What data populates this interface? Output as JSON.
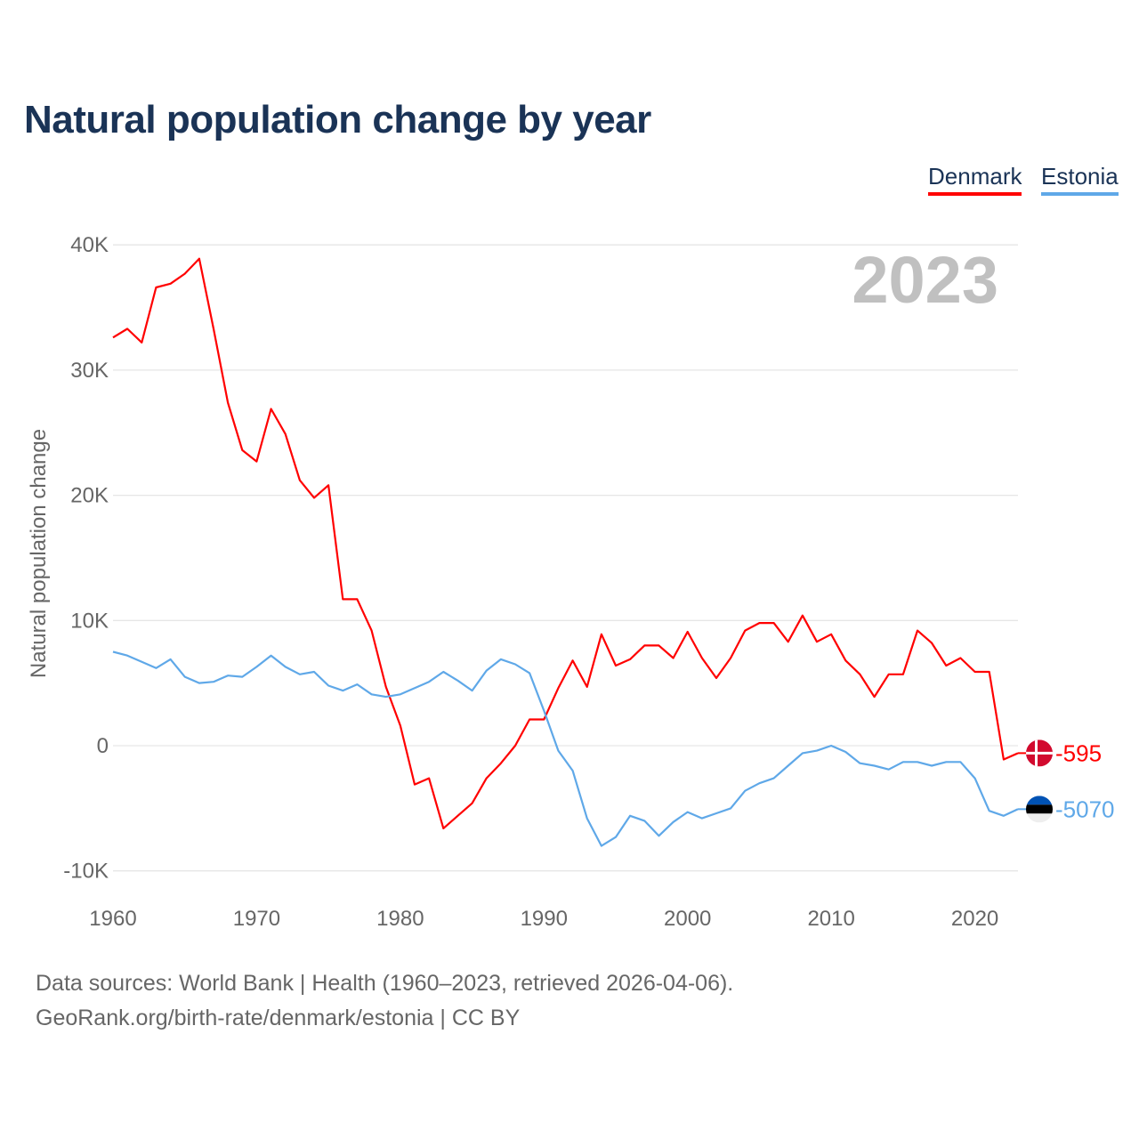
{
  "title": "Natural population change by year",
  "footer": {
    "line1": "Data sources: World Bank | Health (1960–2023, retrieved 2026-04-06).",
    "line2": "GeoRank.org/birth-rate/denmark/estonia | CC BY"
  },
  "chart_data": {
    "type": "line",
    "title": "Natural population change by year",
    "xlabel": "",
    "ylabel": "Natural population change",
    "year_label": "2023",
    "xlim": [
      1960,
      2023
    ],
    "ylim": [
      -10000,
      40000
    ],
    "x_ticks": [
      "1960",
      "1970",
      "1980",
      "1990",
      "2000",
      "2010",
      "2020"
    ],
    "y_ticks": [
      {
        "v": 40000,
        "label": "40K"
      },
      {
        "v": 30000,
        "label": "30K"
      },
      {
        "v": 20000,
        "label": "20K"
      },
      {
        "v": 10000,
        "label": "10K"
      },
      {
        "v": 0,
        "label": "0"
      },
      {
        "v": -10000,
        "label": "-10K"
      }
    ],
    "grid": true,
    "legend_position": "top-right",
    "x_start": 1960,
    "series": [
      {
        "name": "Denmark",
        "color": "#ff0000",
        "end_label": "-595",
        "flag": "denmark-flag",
        "values": [
          32600,
          33300,
          32200,
          36600,
          36900,
          37700,
          38900,
          33300,
          27400,
          23600,
          22700,
          26900,
          24900,
          21200,
          19800,
          20800,
          11700,
          11700,
          9200,
          4700,
          1600,
          -3100,
          -2600,
          -6600,
          -5600,
          -4600,
          -2600,
          -1400,
          0,
          2100,
          2100,
          4600,
          6800,
          4700,
          8900,
          6400,
          6900,
          8000,
          8000,
          7000,
          9100,
          7000,
          5400,
          7000,
          9200,
          9800,
          9800,
          8300,
          10400,
          8300,
          8900,
          6800,
          5700,
          3900,
          5700,
          5700,
          9200,
          8200,
          6400,
          7000,
          5900,
          5900,
          -1100,
          -595
        ]
      },
      {
        "name": "Estonia",
        "color": "#5fa8e8",
        "end_label": "-5070",
        "flag": "estonia-flag",
        "values": [
          7500,
          7200,
          6700,
          6200,
          6900,
          5500,
          5000,
          5100,
          5600,
          5500,
          6300,
          7200,
          6300,
          5700,
          5900,
          4800,
          4400,
          4900,
          4100,
          3900,
          4100,
          4600,
          5100,
          5900,
          5200,
          4400,
          6000,
          6900,
          6500,
          5800,
          2800,
          -400,
          -2000,
          -5800,
          -8000,
          -7300,
          -5600,
          -6000,
          -7200,
          -6100,
          -5300,
          -5800,
          -5400,
          -5000,
          -3600,
          -3000,
          -2600,
          -1600,
          -600,
          -400,
          0,
          -500,
          -1400,
          -1600,
          -1900,
          -1300,
          -1300,
          -1600,
          -1300,
          -1300,
          -2600,
          -5200,
          -5600,
          -5070
        ]
      }
    ]
  }
}
